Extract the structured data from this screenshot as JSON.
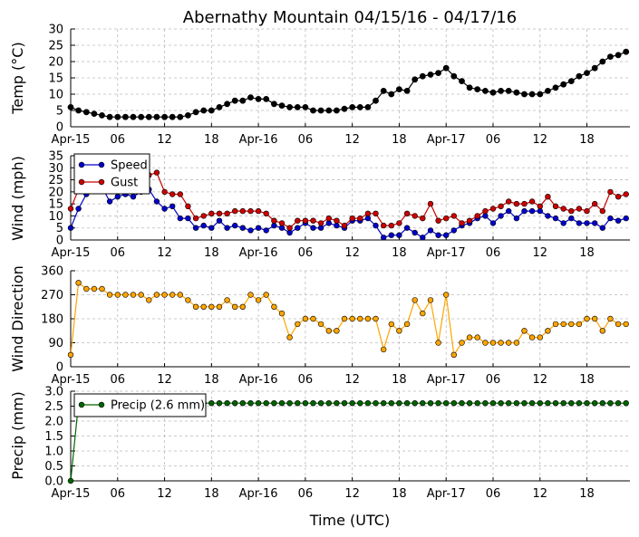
{
  "title": "Abernathy Mountain 04/15/16 - 04/17/16",
  "colors": {
    "temp": "#000000",
    "speed": "#0000cc",
    "gust": "#cc0000",
    "direction": "#ffa500",
    "precip": "#006400",
    "grid": "#bbbbbb"
  },
  "chart_data": [
    {
      "type": "line",
      "ylabel": "Temp ($^\\circ$C)",
      "ylabel_display": "Temp (°C)",
      "ylim": [
        0,
        30
      ],
      "yticks": [
        0,
        5,
        10,
        15,
        20,
        25,
        30
      ],
      "grid": true,
      "x_hours": [
        0,
        1,
        2,
        3,
        4,
        5,
        6,
        7,
        8,
        9,
        10,
        11,
        12,
        13,
        14,
        15,
        16,
        17,
        18,
        19,
        20,
        21,
        22,
        23,
        24,
        25,
        26,
        27,
        28,
        29,
        30,
        31,
        32,
        33,
        34,
        35,
        36,
        37,
        38,
        39,
        40,
        41,
        42,
        43,
        44,
        45,
        46,
        47,
        48,
        49,
        50,
        51,
        52,
        53,
        54,
        55,
        56,
        57,
        58,
        59,
        60,
        61,
        62,
        63,
        64,
        65,
        66,
        67,
        68,
        69,
        70,
        71
      ],
      "series": [
        {
          "key": "temp",
          "values": [
            6,
            5,
            4.5,
            4,
            3.5,
            3,
            3,
            3,
            3,
            3,
            3,
            3,
            3,
            3,
            3,
            3.5,
            4.5,
            5,
            5,
            6,
            7,
            8,
            8,
            9,
            8.5,
            8.5,
            7,
            6.5,
            6,
            6,
            6,
            5,
            5,
            5,
            5,
            5.5,
            6,
            6,
            6,
            8,
            11,
            10,
            11.5,
            11,
            14.5,
            15.5,
            16,
            16.5,
            18,
            15.5,
            14,
            12,
            11.5,
            11,
            10.5,
            11,
            11,
            10.5,
            10,
            10,
            10,
            11,
            12,
            13,
            14,
            15.5,
            16.5,
            18,
            20,
            21.5,
            22,
            23
          ]
        }
      ]
    },
    {
      "type": "line",
      "ylabel": "Wind (mph)",
      "ylim": [
        0,
        35
      ],
      "yticks": [
        0,
        5,
        10,
        15,
        20,
        25,
        30,
        35
      ],
      "grid": true,
      "legend": "top-left",
      "x_hours": [
        0,
        1,
        2,
        3,
        4,
        5,
        6,
        7,
        8,
        9,
        10,
        11,
        12,
        13,
        14,
        15,
        16,
        17,
        18,
        19,
        20,
        21,
        22,
        23,
        24,
        25,
        26,
        27,
        28,
        29,
        30,
        31,
        32,
        33,
        34,
        35,
        36,
        37,
        38,
        39,
        40,
        41,
        42,
        43,
        44,
        45,
        46,
        47,
        48,
        49,
        50,
        51,
        52,
        53,
        54,
        55,
        56,
        57,
        58,
        59,
        60,
        61,
        62,
        63,
        64,
        65,
        66,
        67,
        68,
        69,
        70,
        71
      ],
      "series": [
        {
          "name": "Speed",
          "key": "speed",
          "values": [
            5,
            13,
            19,
            22,
            22,
            16,
            18,
            19,
            18,
            20,
            21,
            16,
            13,
            14,
            9,
            9,
            5,
            6,
            5,
            8,
            5,
            6,
            5,
            4,
            5,
            4,
            6,
            5,
            3,
            5,
            7,
            5,
            5,
            7,
            6,
            5,
            8,
            8,
            9,
            6,
            1,
            2,
            2,
            5,
            3,
            1,
            4,
            2,
            2,
            4,
            6,
            7,
            9,
            10,
            7,
            10,
            12,
            9,
            12,
            12,
            12,
            10,
            9,
            7,
            9,
            7,
            7,
            7,
            5,
            9,
            8,
            9
          ]
        },
        {
          "name": "Gust",
          "key": "gust",
          "values": [
            13,
            21,
            24,
            25,
            26,
            23,
            24,
            25,
            24,
            26,
            27,
            28,
            20,
            19,
            19,
            14,
            9,
            10,
            11,
            11,
            11,
            12,
            12,
            12,
            12,
            11,
            8,
            7,
            5,
            8,
            8,
            8,
            7,
            9,
            8,
            6,
            9,
            9,
            11,
            11,
            6,
            6,
            7,
            11,
            10,
            9,
            15,
            8,
            9,
            10,
            7,
            8,
            10,
            12,
            13,
            14,
            16,
            15,
            15,
            16,
            14,
            18,
            14,
            13,
            12,
            13,
            12,
            15,
            12,
            20,
            18,
            19
          ]
        }
      ]
    },
    {
      "type": "scatter",
      "ylabel": "Wind Direction",
      "ylim": [
        0,
        360
      ],
      "yticks": [
        0,
        90,
        180,
        270,
        360
      ],
      "grid": true,
      "x_hours": [
        0,
        1,
        2,
        3,
        4,
        5,
        6,
        7,
        8,
        9,
        10,
        11,
        12,
        13,
        14,
        15,
        16,
        17,
        18,
        19,
        20,
        21,
        22,
        23,
        24,
        25,
        26,
        27,
        28,
        29,
        30,
        31,
        32,
        33,
        34,
        35,
        36,
        37,
        38,
        39,
        40,
        41,
        42,
        43,
        44,
        45,
        46,
        47,
        48,
        49,
        50,
        51,
        52,
        53,
        54,
        55,
        56,
        57,
        58,
        59,
        60,
        61,
        62,
        63,
        64,
        65,
        66,
        67,
        68,
        69,
        70,
        71
      ],
      "series": [
        {
          "key": "direction",
          "values": [
            45,
            315,
            292,
            292,
            292,
            270,
            270,
            270,
            270,
            270,
            250,
            270,
            270,
            270,
            270,
            250,
            225,
            225,
            225,
            225,
            250,
            225,
            225,
            270,
            250,
            270,
            225,
            200,
            110,
            160,
            180,
            180,
            160,
            135,
            135,
            180,
            180,
            180,
            180,
            180,
            65,
            160,
            135,
            160,
            250,
            200,
            250,
            90,
            270,
            45,
            90,
            110,
            110,
            90,
            90,
            90,
            90,
            90,
            135,
            110,
            110,
            135,
            160,
            160,
            160,
            160,
            180,
            180,
            135,
            180,
            160,
            160
          ]
        }
      ]
    },
    {
      "type": "line",
      "ylabel": "Precip (mm)",
      "xlabel": "Time (UTC)",
      "ylim": [
        0,
        3.0
      ],
      "yticks": [
        0.0,
        0.5,
        1.0,
        1.5,
        2.0,
        2.5,
        3.0
      ],
      "grid": true,
      "legend": "top-left",
      "x_hours": [
        0,
        1,
        2,
        3,
        4,
        5,
        6,
        7,
        8,
        9,
        10,
        11,
        12,
        13,
        14,
        15,
        16,
        17,
        18,
        19,
        20,
        21,
        22,
        23,
        24,
        25,
        26,
        27,
        28,
        29,
        30,
        31,
        32,
        33,
        34,
        35,
        36,
        37,
        38,
        39,
        40,
        41,
        42,
        43,
        44,
        45,
        46,
        47,
        48,
        49,
        50,
        51,
        52,
        53,
        54,
        55,
        56,
        57,
        58,
        59,
        60,
        61,
        62,
        63,
        64,
        65,
        66,
        67,
        68,
        69,
        70,
        71
      ],
      "series": [
        {
          "name": "Precip (2.6 mm)",
          "key": "precip",
          "values": [
            0,
            2.6,
            2.6,
            2.6,
            2.6,
            2.6,
            2.6,
            2.6,
            2.6,
            2.6,
            2.6,
            2.6,
            2.6,
            2.6,
            2.6,
            2.6,
            2.6,
            2.6,
            2.6,
            2.6,
            2.6,
            2.6,
            2.6,
            2.6,
            2.6,
            2.6,
            2.6,
            2.6,
            2.6,
            2.6,
            2.6,
            2.6,
            2.6,
            2.6,
            2.6,
            2.6,
            2.6,
            2.6,
            2.6,
            2.6,
            2.6,
            2.6,
            2.6,
            2.6,
            2.6,
            2.6,
            2.6,
            2.6,
            2.6,
            2.6,
            2.6,
            2.6,
            2.6,
            2.6,
            2.6,
            2.6,
            2.6,
            2.6,
            2.6,
            2.6,
            2.6,
            2.6,
            2.6,
            2.6,
            2.6,
            2.6,
            2.6,
            2.6,
            2.6,
            2.6,
            2.6,
            2.6
          ]
        }
      ]
    }
  ],
  "xaxis": {
    "xlim": [
      0,
      71.5
    ],
    "tick_hours": [
      0,
      6,
      12,
      18,
      24,
      30,
      36,
      42,
      48,
      54,
      60,
      66
    ],
    "tick_labels": [
      "Apr-15",
      "06",
      "12",
      "18",
      "Apr-16",
      "06",
      "12",
      "18",
      "Apr-17",
      "06",
      "12",
      "18"
    ]
  }
}
